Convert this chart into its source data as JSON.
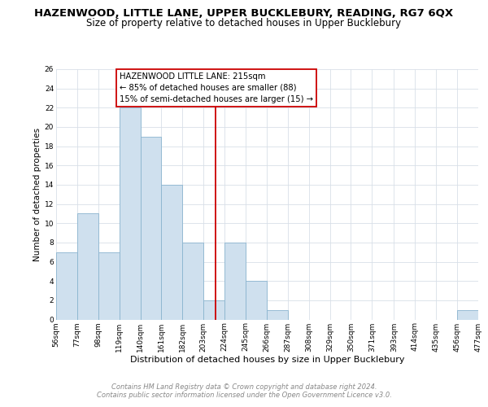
{
  "title": "HAZENWOOD, LITTLE LANE, UPPER BUCKLEBURY, READING, RG7 6QX",
  "subtitle": "Size of property relative to detached houses in Upper Bucklebury",
  "xlabel": "Distribution of detached houses by size in Upper Bucklebury",
  "ylabel": "Number of detached properties",
  "bin_edges": [
    56,
    77,
    98,
    119,
    140,
    161,
    182,
    203,
    224,
    245,
    266,
    287,
    308,
    329,
    350,
    371,
    393,
    414,
    435,
    456,
    477
  ],
  "bar_heights": [
    7,
    11,
    7,
    22,
    19,
    14,
    8,
    2,
    8,
    4,
    1,
    0,
    0,
    0,
    0,
    0,
    0,
    0,
    0,
    1
  ],
  "bar_color": "#cfe0ee",
  "bar_edgecolor": "#8ab4cf",
  "vline_x": 215,
  "vline_color": "#cc0000",
  "ylim": [
    0,
    26
  ],
  "yticks": [
    0,
    2,
    4,
    6,
    8,
    10,
    12,
    14,
    16,
    18,
    20,
    22,
    24,
    26
  ],
  "annotation_title": "HAZENWOOD LITTLE LANE: 215sqm",
  "annotation_line1": "← 85% of detached houses are smaller (88)",
  "annotation_line2": "15% of semi-detached houses are larger (15) →",
  "annotation_box_edgecolor": "#cc0000",
  "footer_line1": "Contains HM Land Registry data © Crown copyright and database right 2024.",
  "footer_line2": "Contains public sector information licensed under the Open Government Licence v3.0.",
  "background_color": "#ffffff",
  "plot_background": "#ffffff",
  "grid_color": "#d8dfe8",
  "title_fontsize": 9.5,
  "subtitle_fontsize": 8.5,
  "xlabel_fontsize": 8,
  "ylabel_fontsize": 7.5,
  "tick_fontsize": 6.5,
  "annotation_fontsize": 7.2,
  "footer_fontsize": 6.0
}
